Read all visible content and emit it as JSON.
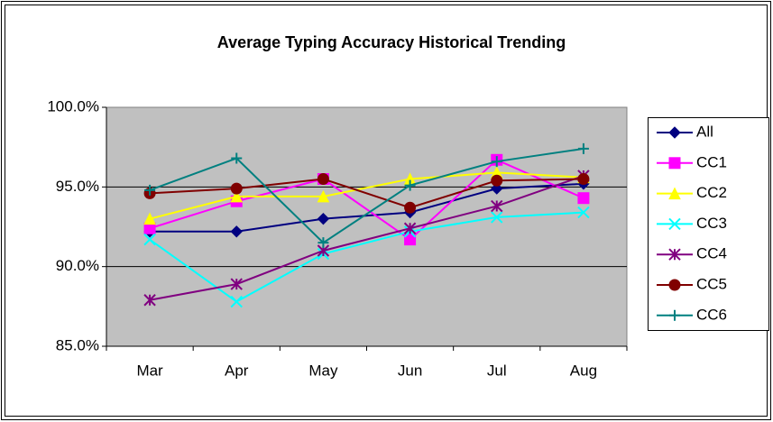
{
  "chart_data": {
    "type": "line",
    "title": "Average Typing Accuracy Historical Trending",
    "categories": [
      "Mar",
      "Apr",
      "May",
      "Jun",
      "Jul",
      "Aug"
    ],
    "series": [
      {
        "name": "All",
        "color": "#000080",
        "marker": "diamond",
        "values": [
          92.2,
          92.2,
          93.0,
          93.4,
          94.9,
          95.2
        ]
      },
      {
        "name": "CC1",
        "color": "#ff00ff",
        "marker": "square",
        "values": [
          92.4,
          94.1,
          95.5,
          91.7,
          96.7,
          94.3
        ]
      },
      {
        "name": "CC2",
        "color": "#ffff00",
        "marker": "triangle",
        "values": [
          93.0,
          94.4,
          94.4,
          95.5,
          95.9,
          95.6
        ]
      },
      {
        "name": "CC3",
        "color": "#00ffff",
        "marker": "x",
        "values": [
          91.7,
          87.8,
          90.8,
          92.2,
          93.1,
          93.4
        ]
      },
      {
        "name": "CC4",
        "color": "#800080",
        "marker": "star",
        "values": [
          87.9,
          88.9,
          91.0,
          92.4,
          93.8,
          95.7
        ]
      },
      {
        "name": "CC5",
        "color": "#800000",
        "marker": "circle",
        "values": [
          94.6,
          94.9,
          95.5,
          93.7,
          95.4,
          95.5
        ]
      },
      {
        "name": "CC6",
        "color": "#008080",
        "marker": "plus",
        "values": [
          94.8,
          96.8,
          91.5,
          95.1,
          96.6,
          97.4
        ]
      }
    ],
    "ylim": [
      85,
      100
    ],
    "yticks": [
      {
        "value": 85,
        "label": "85.0%"
      },
      {
        "value": 90,
        "label": "90.0%"
      },
      {
        "value": 95,
        "label": "95.0%"
      },
      {
        "value": 100,
        "label": "100.0%"
      }
    ],
    "grid": true,
    "legend": "right"
  }
}
